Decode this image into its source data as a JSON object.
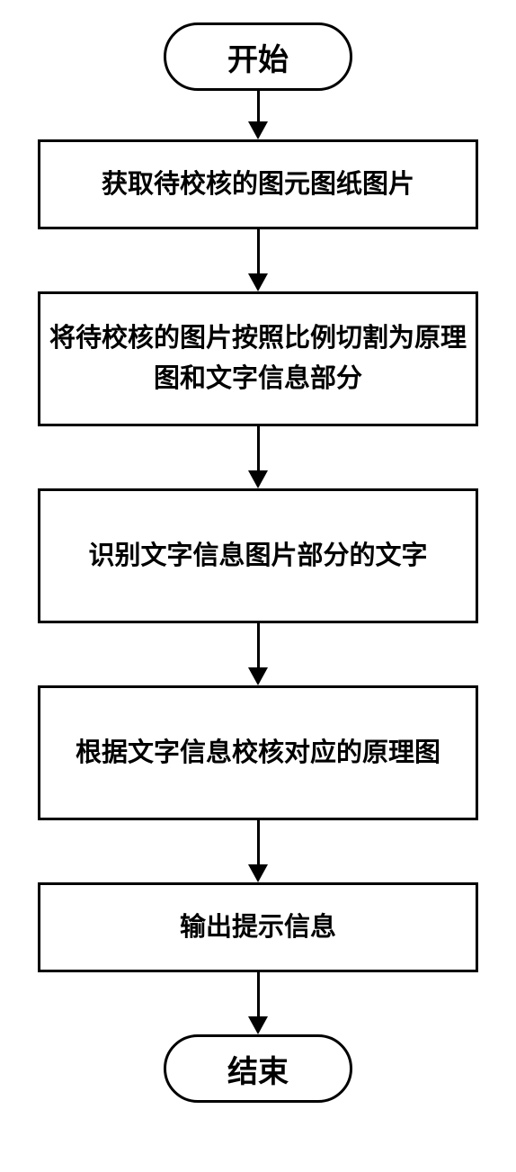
{
  "flowchart": {
    "type": "flowchart",
    "background_color": "#ffffff",
    "border_color": "#000000",
    "border_width": 3,
    "font_family": "SimSun",
    "font_weight": "bold",
    "font_color": "#000000",
    "terminator_fontsize": 34,
    "process_fontsize": 29,
    "terminator_width": 210,
    "terminator_height": 76,
    "terminator_radius": 38,
    "process_width": 490,
    "process_single_height": 100,
    "process_double_height": 150,
    "arrow_shaft_width": 3,
    "arrow_head_width": 22,
    "arrow_head_height": 20,
    "nodes": {
      "start": {
        "label": "开始",
        "shape": "terminator"
      },
      "step1": {
        "label": "获取待校核的图元图纸图片",
        "shape": "process",
        "lines": 1
      },
      "step2": {
        "label": "将待校核的图片按照比例切割为原理图和文字信息部分",
        "shape": "process",
        "lines": 2
      },
      "step3": {
        "label": "识别文字信息图片部分的文字",
        "shape": "process",
        "lines": 1
      },
      "step4": {
        "label": "根据文字信息校核对应的原理图",
        "shape": "process",
        "lines": 1
      },
      "step5": {
        "label": "输出提示信息",
        "shape": "process",
        "lines": 1
      },
      "end": {
        "label": "结束",
        "shape": "terminator"
      }
    },
    "edges_gap": {
      "g0": 55,
      "g1": 70,
      "g2": 70,
      "g3": 70,
      "g4": 70,
      "g5": 70,
      "g6": 55
    }
  }
}
